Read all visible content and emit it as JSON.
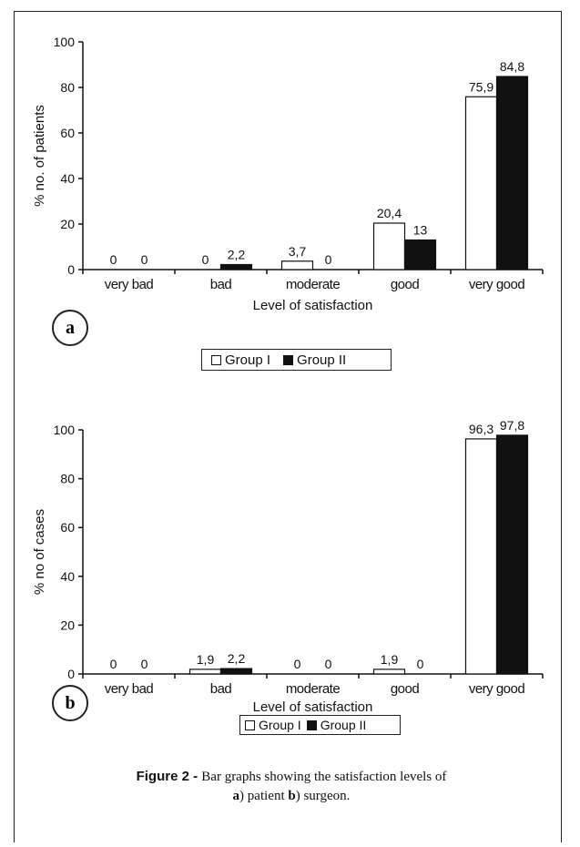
{
  "figure": {
    "caption_label": "Figure 2 - ",
    "caption_text": "Bar graphs showing the satisfaction levels of",
    "caption_a": "a",
    "caption_a_text": ") patient ",
    "caption_b": "b",
    "caption_b_text": ") surgeon."
  },
  "panels": [
    {
      "label": "a"
    },
    {
      "label": "b"
    }
  ],
  "legend": {
    "group1": "Group I",
    "group2": "Group II"
  },
  "colors": {
    "group1": "#ffffff",
    "group2": "#111111",
    "stroke": "#111111"
  },
  "chart_data": [
    {
      "type": "bar",
      "panel": "a",
      "categories": [
        "very bad",
        "bad",
        "moderate",
        "good",
        "very good"
      ],
      "series": [
        {
          "name": "Group I",
          "values": [
            0,
            0,
            3.7,
            20.4,
            75.9
          ],
          "labels": [
            "0",
            "0",
            "3,7",
            "20,4",
            "75,9"
          ]
        },
        {
          "name": "Group II",
          "values": [
            0,
            2.2,
            0,
            13,
            84.8
          ],
          "labels": [
            "0",
            "2,2",
            "0",
            "13",
            "84,8"
          ]
        }
      ],
      "xlabel": "Level of satisfaction",
      "ylabel": "% no. of patients",
      "ylim": [
        0,
        100
      ],
      "yticks": [
        0,
        20,
        40,
        60,
        80,
        100
      ],
      "grid": false,
      "legend": "bottom"
    },
    {
      "type": "bar",
      "panel": "b",
      "categories": [
        "very bad",
        "bad",
        "moderate",
        "good",
        "very good"
      ],
      "series": [
        {
          "name": "Group I",
          "values": [
            0,
            1.9,
            0,
            1.9,
            96.3
          ],
          "labels": [
            "0",
            "1,9",
            "0",
            "1,9",
            "96,3"
          ]
        },
        {
          "name": "Group II",
          "values": [
            0,
            2.2,
            0,
            0,
            97.8
          ],
          "labels": [
            "0",
            "2,2",
            "0",
            "0",
            "97,8"
          ]
        }
      ],
      "xlabel": "Level of satisfaction",
      "ylabel": "% no of cases",
      "ylim": [
        0,
        100
      ],
      "yticks": [
        0,
        20,
        40,
        60,
        80,
        100
      ],
      "grid": false,
      "legend": "bottom"
    }
  ]
}
